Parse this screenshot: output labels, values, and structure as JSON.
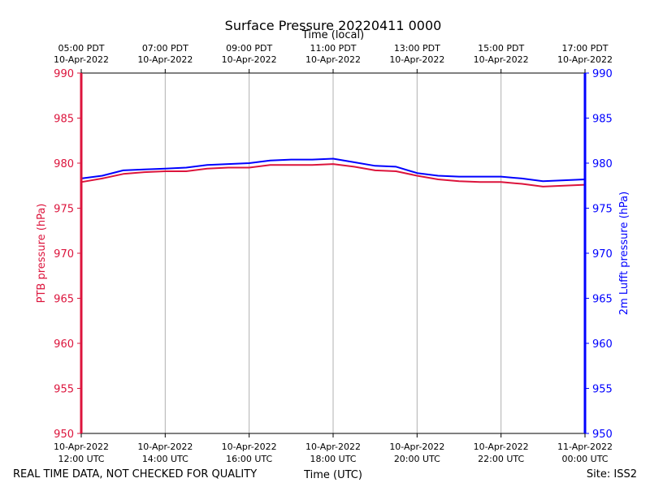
{
  "chart_data": {
    "type": "line",
    "title": "Surface Pressure 20220411 0000",
    "xlabel_bottom": "Time (UTC)",
    "xlabel_top": "Time (local)",
    "ylabel_left": "PTB pressure (hPa)",
    "ylabel_right": "2m Lufft pressure (hPa)",
    "ylim": [
      950,
      990
    ],
    "xlim_hours": [
      0,
      12
    ],
    "yticks": [
      950,
      955,
      960,
      965,
      970,
      975,
      980,
      985,
      990
    ],
    "bottom_ticks": [
      {
        "hour": 0,
        "date": "10-Apr-2022",
        "time": "12:00 UTC"
      },
      {
        "hour": 2,
        "date": "10-Apr-2022",
        "time": "14:00 UTC"
      },
      {
        "hour": 4,
        "date": "10-Apr-2022",
        "time": "16:00 UTC"
      },
      {
        "hour": 6,
        "date": "10-Apr-2022",
        "time": "18:00 UTC"
      },
      {
        "hour": 8,
        "date": "10-Apr-2022",
        "time": "20:00 UTC"
      },
      {
        "hour": 10,
        "date": "10-Apr-2022",
        "time": "22:00 UTC"
      },
      {
        "hour": 12,
        "date": "11-Apr-2022",
        "time": "00:00 UTC"
      }
    ],
    "top_ticks": [
      {
        "hour": 0,
        "time": "05:00 PDT",
        "date": "10-Apr-2022"
      },
      {
        "hour": 2,
        "time": "07:00 PDT",
        "date": "10-Apr-2022"
      },
      {
        "hour": 4,
        "time": "09:00 PDT",
        "date": "10-Apr-2022"
      },
      {
        "hour": 6,
        "time": "11:00 PDT",
        "date": "10-Apr-2022"
      },
      {
        "hour": 8,
        "time": "13:00 PDT",
        "date": "10-Apr-2022"
      },
      {
        "hour": 10,
        "time": "15:00 PDT",
        "date": "10-Apr-2022"
      },
      {
        "hour": 12,
        "time": "17:00 PDT",
        "date": "10-Apr-2022"
      }
    ],
    "grid": "vertical",
    "series": [
      {
        "name": "PTB pressure",
        "color": "#dc143c",
        "axis": "left",
        "x": [
          0,
          0.5,
          1,
          1.5,
          2,
          2.5,
          3,
          3.5,
          4,
          4.5,
          5,
          5.5,
          6,
          6.5,
          7,
          7.5,
          8,
          8.5,
          9,
          9.5,
          10,
          10.5,
          11,
          11.5,
          12
        ],
        "y": [
          977.9,
          978.3,
          978.8,
          979.0,
          979.1,
          979.1,
          979.4,
          979.5,
          979.5,
          979.8,
          979.8,
          979.8,
          979.9,
          979.6,
          979.2,
          979.1,
          978.6,
          978.2,
          978.0,
          977.9,
          977.9,
          977.7,
          977.4,
          977.5,
          977.6
        ]
      },
      {
        "name": "2m Lufft pressure",
        "color": "#0000ff",
        "axis": "right",
        "x": [
          0,
          0.5,
          1,
          1.5,
          2,
          2.5,
          3,
          3.5,
          4,
          4.5,
          5,
          5.5,
          6,
          6.5,
          7,
          7.5,
          8,
          8.5,
          9,
          9.5,
          10,
          10.5,
          11,
          11.5,
          12
        ],
        "y": [
          978.3,
          978.6,
          979.2,
          979.3,
          979.4,
          979.5,
          979.8,
          979.9,
          980.0,
          980.3,
          980.4,
          980.4,
          980.5,
          980.1,
          979.7,
          979.6,
          978.9,
          978.6,
          978.5,
          978.5,
          978.5,
          978.3,
          978.0,
          978.1,
          978.2
        ]
      }
    ]
  },
  "footer": {
    "left_note": "REAL TIME DATA, NOT CHECKED FOR QUALITY",
    "site": "Site: ISS2"
  }
}
